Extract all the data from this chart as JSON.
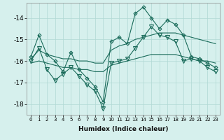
{
  "xlabel": "Humidex (Indice chaleur)",
  "background_color": "#d6f0ed",
  "grid_color": "#b0d8d4",
  "line_color": "#1a6b5a",
  "xlim": [
    -0.5,
    23.5
  ],
  "ylim": [
    -18.5,
    -13.3
  ],
  "yticks": [
    -18,
    -17,
    -16,
    -15,
    -14
  ],
  "xticks": [
    0,
    1,
    2,
    3,
    4,
    5,
    6,
    7,
    8,
    9,
    10,
    11,
    12,
    13,
    14,
    15,
    16,
    17,
    18,
    19,
    20,
    21,
    22,
    23
  ],
  "series": [
    {
      "x": [
        0,
        1,
        2,
        3,
        4,
        5,
        6,
        7,
        8,
        9,
        10,
        11,
        12,
        13,
        14,
        15,
        16,
        17,
        18,
        19,
        20,
        21,
        22,
        23
      ],
      "y": [
        -15.8,
        -14.8,
        -15.7,
        -16.0,
        -16.5,
        -15.6,
        -16.4,
        -16.8,
        -17.2,
        -17.9,
        -15.1,
        -14.9,
        -15.2,
        -13.8,
        -13.5,
        -14.0,
        -14.5,
        -14.1,
        -14.3,
        -14.8,
        -15.8,
        -15.9,
        -16.1,
        -16.3
      ],
      "marker": "D",
      "markersize": 2.5
    },
    {
      "x": [
        0,
        1,
        2,
        3,
        4,
        5,
        6,
        7,
        8,
        9,
        10,
        11,
        12,
        13,
        14,
        15,
        16,
        17,
        18,
        19,
        20,
        21,
        22,
        23
      ],
      "y": [
        -15.9,
        -15.5,
        -15.7,
        -15.8,
        -15.9,
        -15.9,
        -16.0,
        -16.0,
        -16.1,
        -16.1,
        -15.5,
        -15.3,
        -15.2,
        -15.0,
        -14.9,
        -14.8,
        -14.7,
        -14.7,
        -14.7,
        -14.8,
        -14.9,
        -15.0,
        -15.1,
        -15.2
      ],
      "marker": null,
      "markersize": 0
    },
    {
      "x": [
        0,
        1,
        2,
        3,
        4,
        5,
        6,
        7,
        8,
        9,
        10,
        11,
        12,
        13,
        14,
        15,
        16,
        17,
        18,
        19,
        20,
        21,
        22,
        23
      ],
      "y": [
        -16.1,
        -16.0,
        -16.1,
        -16.2,
        -16.3,
        -16.3,
        -16.4,
        -16.4,
        -16.5,
        -16.5,
        -16.2,
        -16.1,
        -16.0,
        -15.9,
        -15.8,
        -15.7,
        -15.7,
        -15.7,
        -15.7,
        -15.8,
        -15.9,
        -16.0,
        -16.0,
        -16.1
      ],
      "marker": null,
      "markersize": 0
    },
    {
      "x": [
        0,
        1,
        2,
        3,
        4,
        5,
        6,
        7,
        8,
        9,
        10,
        11,
        12,
        13,
        14,
        15,
        16,
        17,
        18,
        19,
        20,
        21,
        22,
        23
      ],
      "y": [
        -16.0,
        -15.4,
        -16.4,
        -16.9,
        -16.6,
        -16.3,
        -16.7,
        -17.1,
        -17.4,
        -18.2,
        -16.1,
        -16.0,
        -15.9,
        -15.4,
        -14.9,
        -14.4,
        -14.8,
        -14.9,
        -15.1,
        -16.0,
        -15.9,
        -16.0,
        -16.3,
        -16.5
      ],
      "marker": "v",
      "markersize": 4
    }
  ]
}
